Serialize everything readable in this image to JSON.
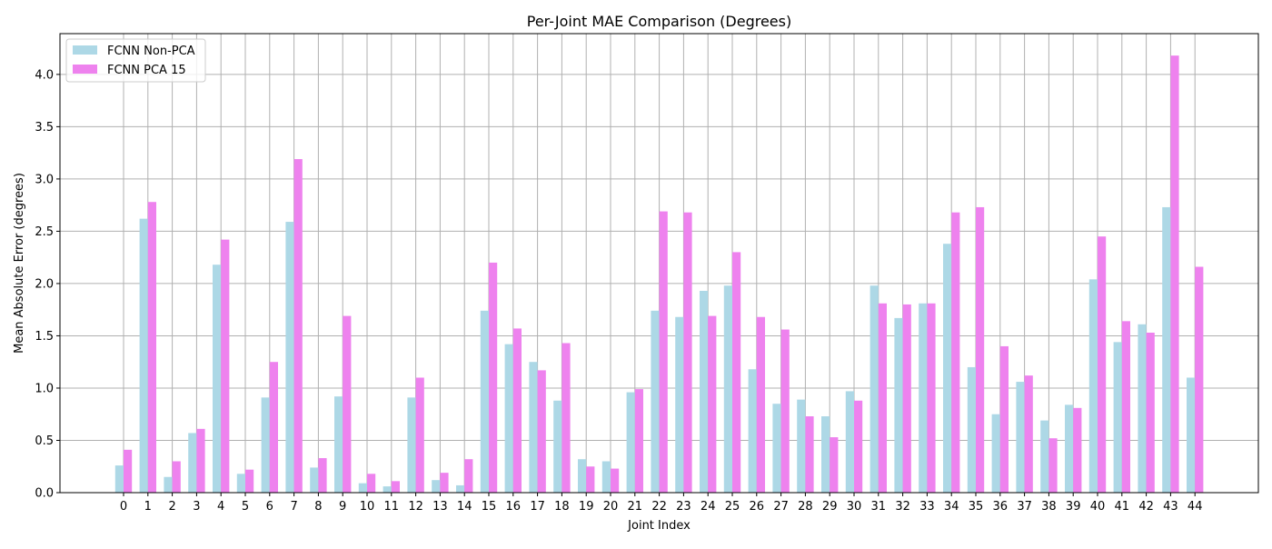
{
  "chart_data": {
    "type": "bar",
    "title": "Per-Joint MAE Comparison (Degrees)",
    "xlabel": "Joint Index",
    "ylabel": "Mean Absolute Error (degrees)",
    "categories": [
      "0",
      "1",
      "2",
      "3",
      "4",
      "5",
      "6",
      "7",
      "8",
      "9",
      "10",
      "11",
      "12",
      "13",
      "14",
      "15",
      "16",
      "17",
      "18",
      "19",
      "20",
      "21",
      "22",
      "23",
      "24",
      "25",
      "26",
      "27",
      "28",
      "29",
      "30",
      "31",
      "32",
      "33",
      "34",
      "35",
      "36",
      "37",
      "38",
      "39",
      "40",
      "41",
      "42",
      "43",
      "44"
    ],
    "series": [
      {
        "name": "FCNN Non-PCA",
        "color": "#add8e6",
        "values": [
          0.26,
          2.62,
          0.15,
          0.57,
          2.18,
          0.18,
          0.91,
          2.59,
          0.24,
          0.92,
          0.09,
          0.06,
          0.91,
          0.12,
          0.07,
          1.74,
          1.42,
          1.25,
          0.88,
          0.32,
          0.3,
          0.96,
          1.74,
          1.68,
          1.93,
          1.98,
          1.18,
          0.85,
          0.89,
          0.73,
          0.97,
          1.98,
          1.67,
          1.81,
          2.38,
          1.2,
          0.75,
          1.06,
          0.69,
          0.84,
          2.04,
          1.44,
          1.61,
          2.73,
          1.1
        ]
      },
      {
        "name": "FCNN PCA 15",
        "color": "#ee82ee",
        "values": [
          0.41,
          2.78,
          0.3,
          0.61,
          2.42,
          0.22,
          1.25,
          3.19,
          0.33,
          1.69,
          0.18,
          0.11,
          1.1,
          0.19,
          0.32,
          2.2,
          1.57,
          1.17,
          1.43,
          0.25,
          0.23,
          0.99,
          2.69,
          2.68,
          1.69,
          2.3,
          1.68,
          1.56,
          0.73,
          0.53,
          0.88,
          1.81,
          1.8,
          1.81,
          2.68,
          2.73,
          1.4,
          1.12,
          0.52,
          0.81,
          2.45,
          1.64,
          1.53,
          4.18,
          2.16
        ]
      }
    ],
    "ylim": [
      0,
      4.39
    ],
    "yticks": [
      0.0,
      0.5,
      1.0,
      1.5,
      2.0,
      2.5,
      3.0,
      3.5,
      4.0
    ],
    "ytick_labels": [
      "0.0",
      "0.5",
      "1.0",
      "1.5",
      "2.0",
      "2.5",
      "3.0",
      "3.5",
      "4.0"
    ],
    "grid": true,
    "legend_position": "top-left"
  }
}
